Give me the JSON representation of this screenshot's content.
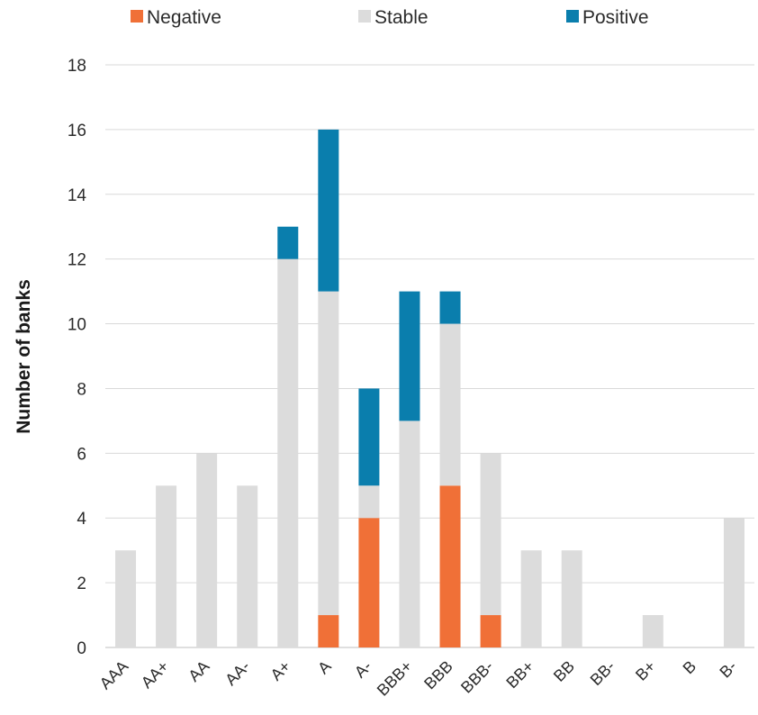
{
  "chart_data": {
    "type": "bar",
    "stacked": true,
    "categories": [
      "AAA",
      "AA+",
      "AA",
      "AA-",
      "A+",
      "A",
      "A-",
      "BBB+",
      "BBB",
      "BBB-",
      "BB+",
      "BB",
      "BB-",
      "B+",
      "B",
      "B-"
    ],
    "series": [
      {
        "name": "Negative",
        "color": "#f07037",
        "values": [
          0,
          0,
          0,
          0,
          0,
          1,
          4,
          0,
          5,
          1,
          0,
          0,
          0,
          0,
          0,
          0
        ]
      },
      {
        "name": "Stable",
        "color": "#dcdcdc",
        "values": [
          3,
          5,
          6,
          5,
          12,
          10,
          1,
          7,
          5,
          5,
          3,
          3,
          0,
          1,
          0,
          4
        ]
      },
      {
        "name": "Positive",
        "color": "#0a7ead",
        "values": [
          0,
          0,
          0,
          0,
          1,
          5,
          3,
          4,
          1,
          0,
          0,
          0,
          0,
          0,
          0,
          0
        ]
      }
    ],
    "ylabel": "Number of banks",
    "xlabel": "",
    "ylim": [
      0,
      18
    ],
    "yticks": [
      "0",
      "2",
      "4",
      "6",
      "8",
      "10",
      "12",
      "14",
      "16",
      "18"
    ],
    "grid": true,
    "legend_position": "top"
  }
}
